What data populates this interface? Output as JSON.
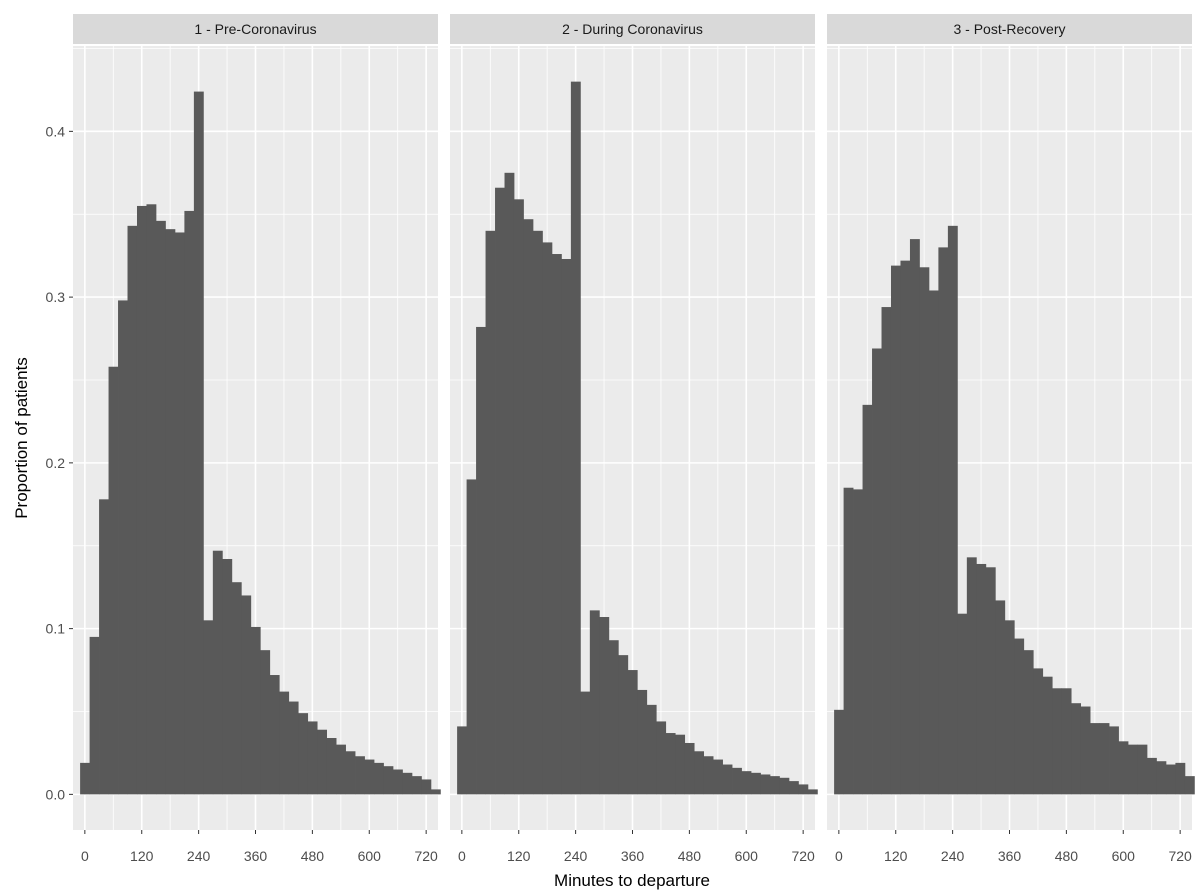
{
  "chart_data": {
    "type": "bar",
    "subtype": "faceted-histogram",
    "xlabel": "Minutes to departure",
    "ylabel": "Proportion of patients",
    "x_ticks": [
      0,
      120,
      240,
      360,
      480,
      600,
      720
    ],
    "y_ticks": [
      0.0,
      0.1,
      0.2,
      0.3,
      0.4
    ],
    "y_tick_labels": [
      "0.0",
      "0.1",
      "0.2",
      "0.3",
      "0.4"
    ],
    "xlim": [
      -25,
      745
    ],
    "ylim": [
      -0.0215,
      0.4515
    ],
    "bin_width": 20,
    "bin_start": -10,
    "grid": true,
    "bar_color": "#595959",
    "panel_background": "#ebebeb",
    "strip_background": "#d9d9d9",
    "grid_color": "#ffffff",
    "facets": [
      {
        "label": "1 - Pre-Coronavirus",
        "values": [
          0.019,
          0.095,
          0.178,
          0.258,
          0.298,
          0.343,
          0.355,
          0.356,
          0.346,
          0.341,
          0.339,
          0.352,
          0.424,
          0.105,
          0.147,
          0.142,
          0.128,
          0.12,
          0.101,
          0.087,
          0.072,
          0.062,
          0.056,
          0.049,
          0.044,
          0.039,
          0.034,
          0.03,
          0.026,
          0.023,
          0.021,
          0.019,
          0.017,
          0.015,
          0.013,
          0.011,
          0.009,
          0.003
        ]
      },
      {
        "label": "2 - During Coronavirus",
        "values": [
          0.041,
          0.19,
          0.282,
          0.34,
          0.366,
          0.375,
          0.359,
          0.347,
          0.34,
          0.333,
          0.326,
          0.323,
          0.43,
          0.062,
          0.111,
          0.107,
          0.093,
          0.084,
          0.075,
          0.063,
          0.054,
          0.044,
          0.037,
          0.036,
          0.031,
          0.026,
          0.023,
          0.021,
          0.018,
          0.016,
          0.014,
          0.013,
          0.012,
          0.011,
          0.01,
          0.008,
          0.006,
          0.003
        ]
      },
      {
        "label": "3 - Post-Recovery",
        "values": [
          0.051,
          0.185,
          0.184,
          0.235,
          0.269,
          0.294,
          0.319,
          0.322,
          0.335,
          0.318,
          0.304,
          0.33,
          0.343,
          0.109,
          0.143,
          0.139,
          0.137,
          0.117,
          0.105,
          0.094,
          0.087,
          0.076,
          0.071,
          0.064,
          0.064,
          0.055,
          0.053,
          0.043,
          0.043,
          0.041,
          0.032,
          0.03,
          0.03,
          0.022,
          0.02,
          0.018,
          0.019,
          0.011
        ]
      }
    ]
  }
}
